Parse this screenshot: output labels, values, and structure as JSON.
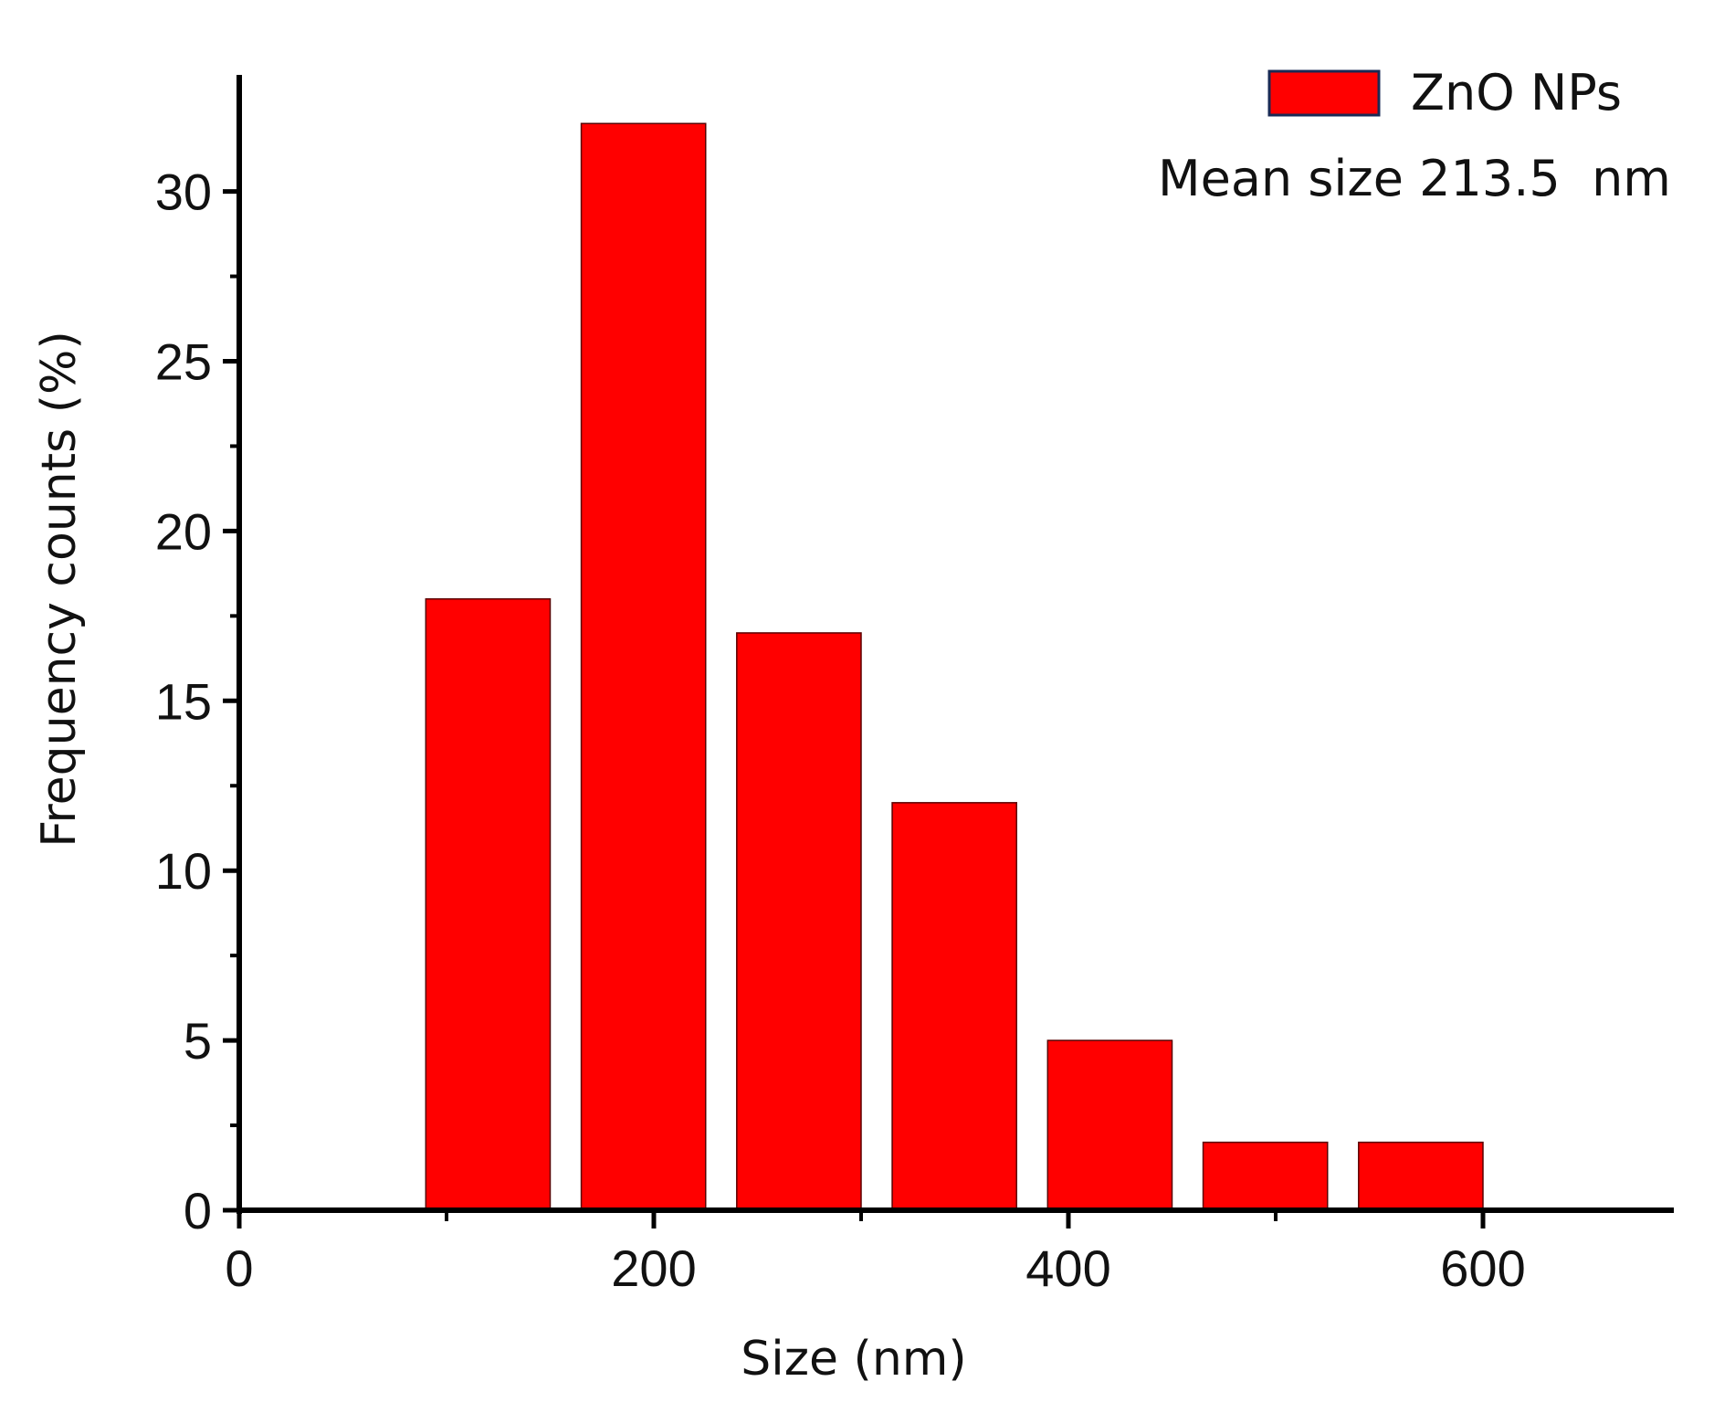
{
  "chart_data": {
    "type": "bar",
    "x": [
      120,
      195,
      270,
      345,
      420,
      495,
      570
    ],
    "bin_width": 60,
    "values": [
      18,
      32,
      17,
      12,
      5,
      2,
      2
    ],
    "xlabel": "Size (nm)",
    "ylabel": "Frequency counts (%)",
    "xlim": [
      0,
      690
    ],
    "ylim": [
      0,
      32.5
    ],
    "x_ticks": [
      0,
      200,
      400,
      600
    ],
    "x_tick_labels": [
      "0",
      "200",
      "400",
      "600"
    ],
    "y_ticks": [
      0,
      5,
      10,
      15,
      20,
      25,
      30
    ],
    "y_tick_labels": [
      "0",
      "5",
      "10",
      "15",
      "20",
      "25",
      "30"
    ],
    "x_minor_ticks": [
      100,
      300,
      500
    ],
    "y_minor_ticks": [
      2.5,
      7.5,
      12.5,
      17.5,
      22.5,
      27.5
    ],
    "grid": false,
    "legend_position": "top-right",
    "series": [
      {
        "name": "ZnO NPs",
        "color": "#ff0000"
      }
    ],
    "annotation": "Mean size 213.5  nm"
  }
}
